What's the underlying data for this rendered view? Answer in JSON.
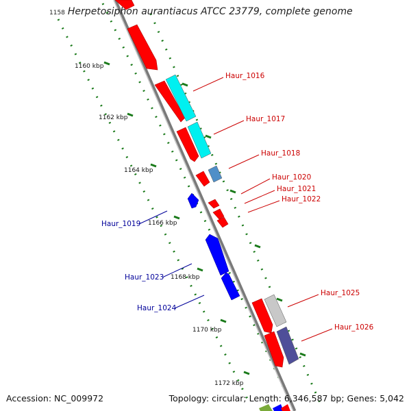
{
  "title": {
    "number": "1158",
    "genus": "Herpetosiphon",
    "rest": "aurantiacus ATCC 23779, complete genome"
  },
  "footer": {
    "accession": "Accession: NC_009972",
    "summary": "Topology: circular; Length: 6,346,587 bp; Genes: 5,042"
  },
  "ticks": [
    "1160 kbp",
    "1162 kbp",
    "1164 kbp",
    "1166 kbp",
    "1168 kbp",
    "1170 kbp",
    "1172 kbp"
  ],
  "genes_right": [
    "Haur_1016",
    "Haur_1017",
    "Haur_1018",
    "Haur_1020",
    "Haur_1021",
    "Haur_1022",
    "Haur_1025",
    "Haur_1026"
  ],
  "genes_left": [
    "Haur_1019",
    "Haur_1023",
    "Haur_1024"
  ],
  "colors": {
    "forward_cds": "#ff0000",
    "reverse_cds": "#0000ff",
    "cog_cyan": "#00f0f0",
    "cog_steel": "#4f8fc8",
    "cog_grey": "#c8c8c8",
    "cog_purple": "#4f4f99",
    "label_right": "#cc0000",
    "label_left": "#000099",
    "tick": "#1a7a1a",
    "backbone": "#8a8a8a"
  }
}
